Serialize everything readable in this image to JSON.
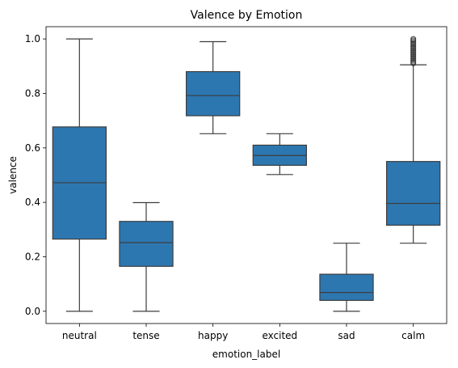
{
  "chart_data": {
    "type": "box",
    "title": "Valence by Emotion",
    "xlabel": "emotion_label",
    "ylabel": "valence",
    "ylim": [
      -0.045,
      1.045
    ],
    "yticks": [
      "0.0",
      "0.2",
      "0.4",
      "0.6",
      "0.8",
      "1.0"
    ],
    "categories": [
      "neutral",
      "tense",
      "happy",
      "excited",
      "sad",
      "calm"
    ],
    "boxes": [
      {
        "category": "neutral",
        "whisker_low": 0.0,
        "q1": 0.265,
        "median": 0.472,
        "q3": 0.677,
        "whisker_high": 1.0,
        "outliers": []
      },
      {
        "category": "tense",
        "whisker_low": 0.0,
        "q1": 0.165,
        "median": 0.252,
        "q3": 0.33,
        "whisker_high": 0.399,
        "outliers": []
      },
      {
        "category": "happy",
        "whisker_low": 0.652,
        "q1": 0.718,
        "median": 0.792,
        "q3": 0.88,
        "whisker_high": 0.99,
        "outliers": []
      },
      {
        "category": "excited",
        "whisker_low": 0.502,
        "q1": 0.536,
        "median": 0.572,
        "q3": 0.61,
        "whisker_high": 0.652,
        "outliers": []
      },
      {
        "category": "sad",
        "whisker_low": 0.0,
        "q1": 0.04,
        "median": 0.069,
        "q3": 0.136,
        "whisker_high": 0.25,
        "outliers": []
      },
      {
        "category": "calm",
        "whisker_low": 0.25,
        "q1": 0.316,
        "median": 0.396,
        "q3": 0.55,
        "whisker_high": 0.905,
        "outliers": [
          0.91,
          0.915,
          0.92,
          0.925,
          0.93,
          0.935,
          0.94,
          0.945,
          0.95,
          0.955,
          0.96,
          0.965,
          0.97,
          0.975,
          0.98,
          0.985,
          0.99,
          0.995,
          1.0
        ]
      }
    ],
    "grid": false,
    "box_color": "#2d77b1",
    "line_color": "#3d3d3d"
  }
}
